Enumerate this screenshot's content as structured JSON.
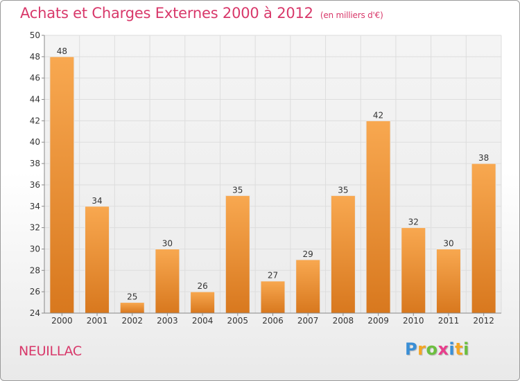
{
  "header": {
    "title": "Achats et Charges Externes 2000 à 2012",
    "unit": "(en milliers d'€)"
  },
  "footer": {
    "commune": "NEUILLAC",
    "logo_letters": [
      "P",
      "r",
      "o",
      "x",
      "i",
      "t",
      "i"
    ],
    "logo_colors": [
      "#3a8fd6",
      "#f5a623",
      "#6cbf3f",
      "#e83e8c",
      "#3a8fd6",
      "#f5a623",
      "#6cbf3f"
    ]
  },
  "colors": {
    "bar_light": "#f8a850",
    "bar_dark": "#d8781e",
    "title": "#d8386a",
    "grid": "#dddddd"
  },
  "chart_data": {
    "type": "bar",
    "categories": [
      "2000",
      "2001",
      "2002",
      "2003",
      "2004",
      "2005",
      "2006",
      "2007",
      "2008",
      "2009",
      "2010",
      "2011",
      "2012"
    ],
    "values": [
      48,
      34,
      25,
      30,
      26,
      35,
      27,
      29,
      35,
      42,
      32,
      30,
      38
    ],
    "ylim": [
      24,
      50
    ],
    "yticks": [
      24,
      26,
      28,
      30,
      32,
      34,
      36,
      38,
      40,
      42,
      44,
      46,
      48,
      50
    ],
    "grid": true,
    "data_labels": true
  }
}
